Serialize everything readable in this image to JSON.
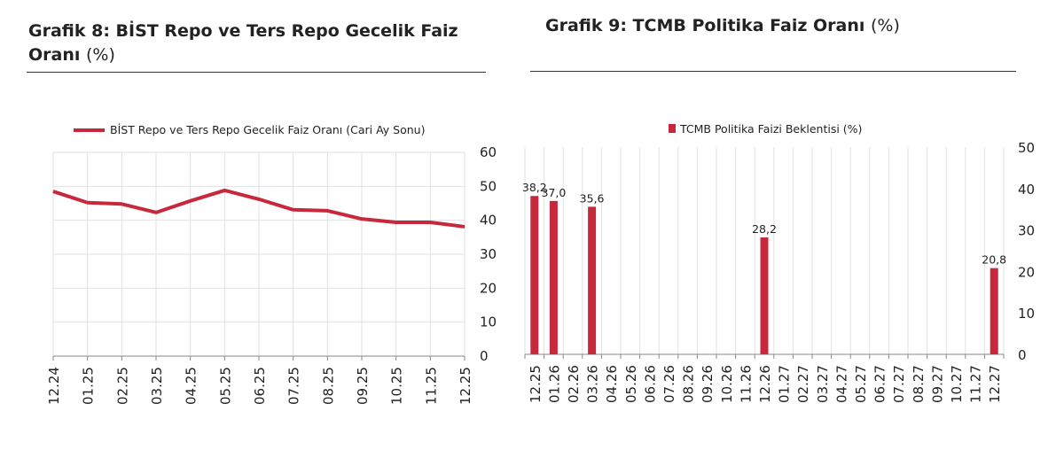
{
  "titles": {
    "left": {
      "main": "Grafik 8:  BİST Repo ve Ters Repo Gecelik Faiz Oranı",
      "unit": "(%)"
    },
    "right": {
      "main": "Grafik 9: TCMB Politika Faiz Oranı",
      "unit": "(%)"
    }
  },
  "chart_data": [
    {
      "type": "line",
      "title": "Grafik 8:  BİST Repo ve Ters Repo Gecelik Faiz Oranı (%)",
      "categories": [
        "12.24",
        "01.25",
        "02.25",
        "03.25",
        "04.25",
        "05.25",
        "06.25",
        "07.25",
        "08.25",
        "09.25",
        "10.25",
        "11.25",
        "12.25"
      ],
      "series": [
        {
          "name": "BİST Repo ve Ters Repo Gecelik Faiz Oranı (Cari Ay Sonu)",
          "values": [
            48.5,
            45.2,
            44.8,
            42.3,
            45.7,
            48.8,
            46.2,
            43.1,
            42.8,
            40.4,
            39.4,
            39.4,
            38.1
          ],
          "color": "#c8283c"
        }
      ],
      "ylim": [
        0,
        60
      ],
      "yticks": [
        0,
        10,
        20,
        30,
        40,
        50,
        60
      ],
      "yaxis_side": "right",
      "grid": true,
      "legend": "top"
    },
    {
      "type": "bar",
      "title": "Grafik 9: TCMB Politika Faiz Oranı (%)",
      "categories": [
        "12.25",
        "01.26",
        "02.26",
        "03.26",
        "04.26",
        "05.26",
        "06.26",
        "07.26",
        "08.26",
        "09.26",
        "10.26",
        "11.26",
        "12.26",
        "01.27",
        "02.27",
        "03.27",
        "04.27",
        "05.27",
        "06.27",
        "07.27",
        "08.27",
        "09.27",
        "10.27",
        "11.27",
        "12.27"
      ],
      "series": [
        {
          "name": "TCMB Politika Faizi Beklentisi (%)",
          "values": [
            38.2,
            37.0,
            null,
            35.6,
            null,
            null,
            null,
            null,
            null,
            null,
            null,
            null,
            28.2,
            null,
            null,
            null,
            null,
            null,
            null,
            null,
            null,
            null,
            null,
            null,
            20.8
          ],
          "labels": [
            "38,2",
            "37,0",
            null,
            "35,6",
            null,
            null,
            null,
            null,
            null,
            null,
            null,
            null,
            "28,2",
            null,
            null,
            null,
            null,
            null,
            null,
            null,
            null,
            null,
            null,
            null,
            "20,8"
          ],
          "color": "#c8283c"
        }
      ],
      "ylim": [
        0,
        50
      ],
      "yticks": [
        0,
        10,
        20,
        30,
        40,
        50
      ],
      "yaxis_side": "right",
      "grid": true,
      "legend": "top"
    }
  ]
}
